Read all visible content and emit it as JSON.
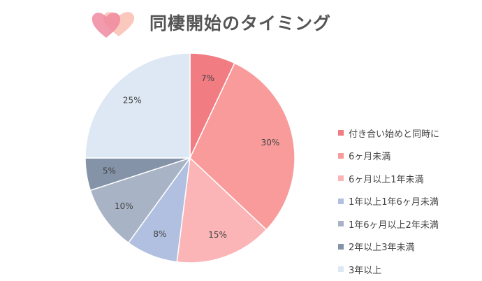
{
  "chart_data": {
    "type": "pie",
    "title": "同棲開始のタイミング",
    "legend_position": "right",
    "start_angle": "12 o'clock",
    "direction": "clockwise",
    "slices": [
      {
        "label": "付き合い始めと同時に",
        "value": 7,
        "display": "7%",
        "color": "#f17c82"
      },
      {
        "label": "6ヶ月未満",
        "value": 30,
        "display": "30%",
        "color": "#f99b9b"
      },
      {
        "label": "6ヶ月以上1年未満",
        "value": 15,
        "display": "15%",
        "color": "#fbb5b6"
      },
      {
        "label": "1年以上1年6ヶ月未満",
        "value": 8,
        "display": "8%",
        "color": "#b1c0e0"
      },
      {
        "label": "1年6ヶ月以上2年未満",
        "value": 10,
        "display": "10%",
        "color": "#a8b3c6"
      },
      {
        "label": "2年以上3年未満",
        "value": 5,
        "display": "5%",
        "color": "#8593a8"
      },
      {
        "label": "3年以上",
        "value": 25,
        "display": "25%",
        "color": "#dde8f4"
      }
    ]
  },
  "icons": {
    "title_decoration": "hearts-icon"
  }
}
